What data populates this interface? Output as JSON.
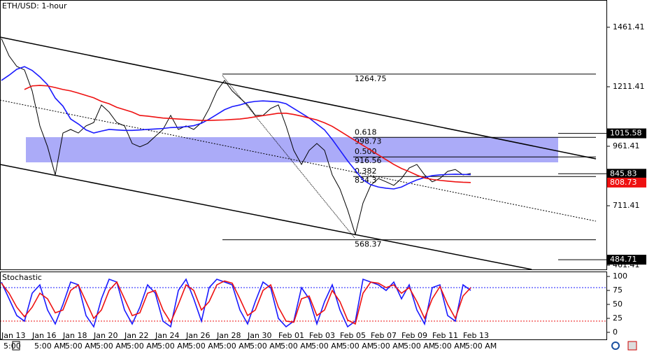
{
  "chart_data": [
    {
      "type": "line",
      "title": "ETH/USD: 1-hour",
      "ylim": [
        443.8,
        1576
      ],
      "yticks": [
        1461.41,
        1211.41,
        961.41,
        711.41,
        461.41
      ],
      "series": [
        {
          "color": "#000000",
          "values": [
            1414,
            1341,
            1297,
            1282,
            1194,
            1047,
            959,
            841,
            1017,
            1032,
            1017,
            1047,
            1061,
            1135,
            1105,
            1061,
            1047,
            973,
            959,
            973,
            1003,
            1032,
            1091,
            1032,
            1047,
            1032,
            1061,
            1120,
            1194,
            1238,
            1194,
            1164,
            1135,
            1091,
            1091,
            1120,
            1135,
            1047,
            944,
            885,
            944,
            973,
            944,
            841,
            782,
            694,
            591,
            723,
            797,
            826,
            812,
            797,
            826,
            870,
            885,
            841,
            812,
            826,
            856,
            864,
            841,
            847
          ]
        },
        {
          "color": "#1a1aff",
          "values": [
            1238,
            1260,
            1285,
            1296,
            1280,
            1253,
            1220,
            1164,
            1130,
            1076,
            1055,
            1030,
            1017,
            1025,
            1032,
            1030,
            1028,
            1028,
            1030,
            1032,
            1034,
            1036,
            1040,
            1041,
            1044,
            1048,
            1058,
            1075,
            1095,
            1115,
            1128,
            1135,
            1145,
            1150,
            1152,
            1150,
            1148,
            1140,
            1120,
            1100,
            1080,
            1055,
            1030,
            990,
            945,
            900,
            860,
            820,
            800,
            790,
            785,
            782,
            790,
            806,
            820,
            830,
            838,
            841,
            843,
            844,
            843,
            842
          ]
        },
        {
          "color": "#ee1111",
          "values": [
            null,
            null,
            null,
            1200,
            1215,
            1217,
            1215,
            1208,
            1200,
            1194,
            1185,
            1175,
            1165,
            1150,
            1140,
            1125,
            1115,
            1105,
            1091,
            1088,
            1084,
            1080,
            1078,
            1076,
            1074,
            1072,
            1070,
            1070,
            1071,
            1072,
            1074,
            1076,
            1080,
            1085,
            1090,
            1095,
            1100,
            1100,
            1095,
            1088,
            1080,
            1072,
            1060,
            1045,
            1025,
            1005,
            985,
            965,
            945,
            925,
            905,
            885,
            868,
            855,
            840,
            828,
            822,
            818,
            815,
            812,
            810,
            809
          ]
        }
      ],
      "fib_levels": [
        {
          "ratio": "0.618",
          "value": 998.73
        },
        {
          "ratio": "0.500",
          "value": 916.56
        },
        {
          "ratio": "0.382",
          "value": 834.3
        }
      ],
      "swing_levels": [
        1264.75,
        568.37
      ],
      "price_tags": [
        {
          "value": 1015.58,
          "color": "#000000"
        },
        {
          "value": 845.83,
          "color": "#000000"
        },
        {
          "value": 808.73,
          "color": "#ee1111"
        },
        {
          "value": 484.71,
          "color": "#000000"
        }
      ]
    },
    {
      "type": "line",
      "title": "Stochastic",
      "ylim": [
        -13.9,
        107.6
      ],
      "yticks": [
        0,
        25,
        50,
        75,
        100
      ],
      "levels": [
        {
          "value": 80,
          "color": "#1a1aff"
        },
        {
          "value": 20,
          "color": "#ee1111"
        }
      ],
      "categories": [
        "Jan 13",
        null,
        null,
        null,
        "Jan 16",
        null,
        null,
        null,
        "Jan 18",
        null,
        null,
        null,
        "Jan 20",
        null,
        null,
        null,
        "Jan 22",
        null,
        null,
        null,
        "Jan 24",
        null,
        null,
        null,
        "Jan 26",
        null,
        null,
        null,
        "Jan 28",
        null,
        null,
        null,
        "Jan 30",
        null,
        null,
        null,
        "Feb 01",
        null,
        null,
        null,
        "Feb 03",
        null,
        null,
        null,
        "Feb 05",
        null,
        null,
        null,
        "Feb 07",
        null,
        null,
        null,
        "Feb 09",
        null,
        null,
        null,
        "Feb 11",
        null,
        null,
        null,
        "Feb 13",
        null
      ],
      "time_labels": [
        "5:00",
        "5:00 AM",
        "5:00 AM",
        "5:00 AM",
        "5:00 AM",
        "5:00 AM",
        "5:00 AM",
        "5:00 AM",
        "5:00 AM",
        "5:00 AM",
        "5:00 AM",
        "5:00 AM",
        "5:00 AM",
        "5:00 AM",
        "5:00 AM",
        "5:00 AM"
      ],
      "series": [
        {
          "color": "#1a1aff",
          "values": [
            90,
            60,
            30,
            20,
            70,
            85,
            40,
            15,
            50,
            90,
            85,
            30,
            10,
            60,
            95,
            90,
            40,
            15,
            45,
            85,
            70,
            20,
            10,
            75,
            95,
            60,
            20,
            80,
            95,
            90,
            85,
            40,
            15,
            55,
            90,
            80,
            25,
            10,
            20,
            80,
            60,
            15,
            55,
            85,
            40,
            10,
            20,
            95,
            90,
            85,
            75,
            90,
            60,
            85,
            40,
            15,
            80,
            85,
            30,
            20,
            85,
            75
          ]
        },
        {
          "color": "#ee1111",
          "values": [
            88,
            70,
            45,
            28,
            45,
            70,
            60,
            35,
            40,
            75,
            85,
            55,
            25,
            40,
            75,
            90,
            60,
            30,
            35,
            70,
            75,
            40,
            18,
            50,
            85,
            75,
            40,
            55,
            85,
            92,
            88,
            60,
            30,
            40,
            75,
            85,
            45,
            20,
            18,
            60,
            65,
            30,
            40,
            75,
            55,
            22,
            15,
            70,
            90,
            88,
            80,
            85,
            70,
            80,
            55,
            25,
            60,
            82,
            50,
            25,
            65,
            80
          ]
        }
      ]
    }
  ]
}
